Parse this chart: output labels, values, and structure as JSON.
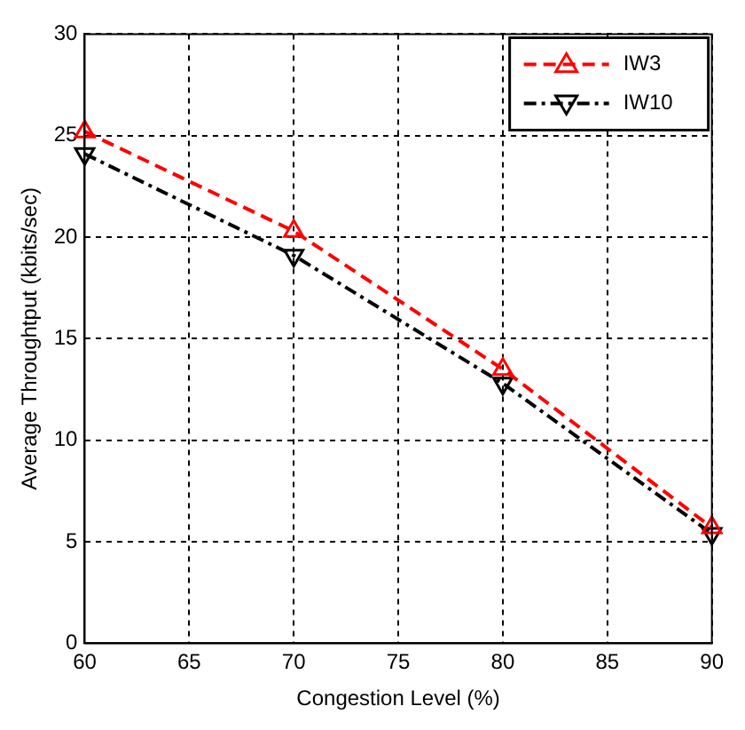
{
  "chart_data": {
    "type": "line",
    "xlabel": "Congestion Level (%)",
    "ylabel": "Average Throughtput (kbits/sec)",
    "x": [
      60,
      70,
      80,
      90
    ],
    "series": [
      {
        "name": "IW3",
        "color": "#ff0000",
        "values": [
          25.2,
          20.3,
          13.5,
          5.7
        ],
        "line_style": "dashed",
        "marker": "triangle"
      },
      {
        "name": "IW10",
        "color": "#000000",
        "values": [
          24.1,
          19.1,
          12.8,
          5.4
        ],
        "line_style": "dashdot",
        "marker": "triangle-down"
      }
    ],
    "xlim": [
      60,
      90
    ],
    "xticks": [
      60,
      65,
      70,
      75,
      80,
      85,
      90
    ],
    "ylim": [
      0,
      30
    ],
    "yticks": [
      0,
      5,
      10,
      15,
      20,
      25,
      30
    ],
    "grid": true,
    "legend": "top right"
  }
}
